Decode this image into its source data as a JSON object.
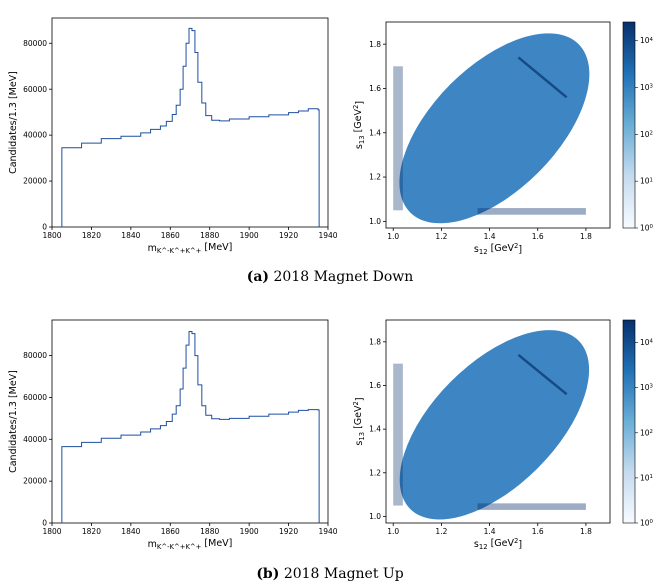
{
  "colors": {
    "histogram_line": "#1f4fa0",
    "dalitz_light": "#7fb3dc",
    "dalitz_base": "#3d86c3",
    "dalitz_dark": "#08306b"
  },
  "chart_data": [
    {
      "id": "down_mass",
      "type": "line",
      "subtype": "step-histogram",
      "xlabel": "m_{K^-K^+K^+} [MeV]",
      "ylabel": "Candidates/1.3 [MeV]",
      "xlim": [
        1800,
        1940
      ],
      "ylim": [
        0,
        91000
      ],
      "xticks": [
        "1800",
        "1820",
        "1840",
        "1860",
        "1880",
        "1900",
        "1920",
        "1940"
      ],
      "yticks": [
        "0",
        "20000",
        "40000",
        "60000",
        "80000"
      ],
      "x": [
        1805,
        1815,
        1825,
        1835,
        1845,
        1850,
        1855,
        1858,
        1861,
        1863,
        1865,
        1866.5,
        1868,
        1869.5,
        1871,
        1872.5,
        1874,
        1876,
        1878,
        1881,
        1885,
        1890,
        1900,
        1910,
        1920,
        1925,
        1930,
        1935
      ],
      "values": [
        34500,
        36500,
        38500,
        39500,
        41000,
        42500,
        44000,
        46000,
        49000,
        53000,
        60000,
        70000,
        80000,
        86500,
        85500,
        76000,
        63000,
        54000,
        48500,
        46500,
        46200,
        47000,
        48000,
        48800,
        49800,
        50500,
        51500,
        51000
      ]
    },
    {
      "id": "down_dalitz",
      "type": "heatmap",
      "xlabel": "s_{12} [GeV^2]",
      "ylabel": "s_{13} [GeV^2]",
      "xlim": [
        0.97,
        1.9
      ],
      "ylim": [
        0.97,
        1.9
      ],
      "xticks": [
        "1.0",
        "1.2",
        "1.4",
        "1.6",
        "1.8"
      ],
      "yticks": [
        "1.0",
        "1.2",
        "1.4",
        "1.6",
        "1.8"
      ],
      "colorbar": {
        "scale": "log",
        "ticks": [
          "10^0",
          "10^1",
          "10^2",
          "10^3",
          "10^4"
        ],
        "max_exponent": 4.4
      }
    },
    {
      "id": "up_mass",
      "type": "line",
      "subtype": "step-histogram",
      "xlabel": "m_{K^-K^+K^+} [MeV]",
      "ylabel": "Candidates/1.3 [MeV]",
      "xlim": [
        1800,
        1940
      ],
      "ylim": [
        0,
        97000
      ],
      "xticks": [
        "1800",
        "1820",
        "1840",
        "1860",
        "1880",
        "1900",
        "1920",
        "1940"
      ],
      "yticks": [
        "0",
        "20000",
        "40000",
        "60000",
        "80000"
      ],
      "x": [
        1805,
        1815,
        1825,
        1835,
        1845,
        1850,
        1855,
        1858,
        1861,
        1863,
        1865,
        1866.5,
        1868,
        1869.5,
        1871,
        1872.5,
        1874,
        1876,
        1878,
        1881,
        1885,
        1890,
        1900,
        1910,
        1920,
        1925,
        1930,
        1935
      ],
      "values": [
        36500,
        38500,
        40500,
        42000,
        43500,
        45000,
        46500,
        48500,
        52000,
        56000,
        64000,
        74000,
        85000,
        91500,
        90500,
        80000,
        66000,
        56000,
        51500,
        49800,
        49500,
        50000,
        51000,
        52000,
        53000,
        53800,
        54200,
        54000
      ]
    },
    {
      "id": "up_dalitz",
      "type": "heatmap",
      "xlabel": "s_{12} [GeV^2]",
      "ylabel": "s_{13} [GeV^2]",
      "xlim": [
        0.97,
        1.9
      ],
      "ylim": [
        0.97,
        1.9
      ],
      "xticks": [
        "1.0",
        "1.2",
        "1.4",
        "1.6",
        "1.8"
      ],
      "yticks": [
        "1.0",
        "1.2",
        "1.4",
        "1.6",
        "1.8"
      ],
      "colorbar": {
        "scale": "log",
        "ticks": [
          "10^0",
          "10^1",
          "10^2",
          "10^3",
          "10^4"
        ],
        "max_exponent": 4.5
      }
    }
  ],
  "captions": {
    "a": {
      "label": "(a)",
      "text": "2018 Magnet Down"
    },
    "b": {
      "label": "(b)",
      "text": "2018 Magnet Up"
    }
  }
}
